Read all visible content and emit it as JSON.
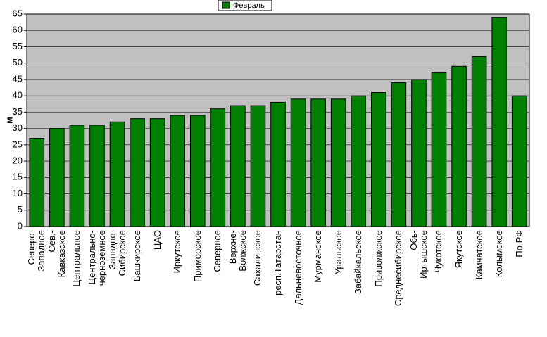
{
  "chart_data": {
    "type": "bar",
    "y_label": "м",
    "categories": [
      "Северо-\nЗападное",
      "Сев.-\nКавказское",
      "Центральное",
      "Центрально-\nчерноземное",
      "Западно-\nСибирское",
      "Башкирское",
      "ЦАО",
      "Иркутское",
      "Приморское",
      "Северное",
      "Верхне-\nВолжское",
      "Сахалинское",
      "респ.Татарстан",
      "Дальневосточное",
      "Мурманское",
      "Уральское",
      "Забайкальское",
      "Приволжское",
      "Среднесибирское",
      "Обь-\nИртышское",
      "Чукотское",
      "Якутское",
      "Камчатское",
      "Колымское",
      "По РФ"
    ],
    "series": [
      {
        "name": "Февраль",
        "color": "#008000",
        "values": [
          27,
          30,
          31,
          31,
          32,
          33,
          33,
          34,
          34,
          36,
          37,
          37,
          38,
          39,
          39,
          39,
          40,
          41,
          44,
          45,
          47,
          49,
          52,
          64,
          40
        ]
      }
    ],
    "ylim": [
      0,
      65
    ],
    "yticks": [
      0,
      5,
      10,
      15,
      20,
      25,
      30,
      35,
      40,
      45,
      50,
      55,
      60,
      65
    ],
    "grid": true,
    "legend": "top"
  }
}
